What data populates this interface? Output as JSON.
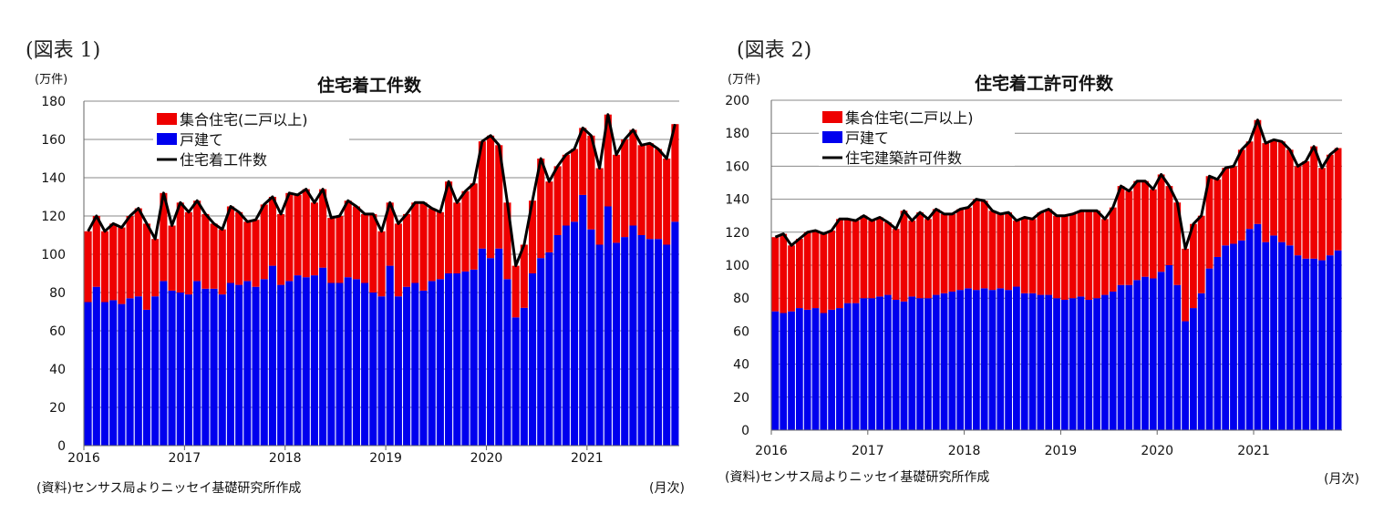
{
  "chart_data": [
    {
      "figure_label": "(図表 1)",
      "type": "bar",
      "stacked": true,
      "title": "住宅着工件数",
      "ylabel": "(万件)",
      "xlabel": "(月次)",
      "source": "(資料)センサス局よりニッセイ基礎研究所作成",
      "ylim": [
        0,
        180
      ],
      "yticks": [
        "0",
        "20",
        "40",
        "60",
        "80",
        "100",
        "120",
        "140",
        "160",
        "180"
      ],
      "xticks": [
        "2016",
        "2017",
        "2018",
        "2019",
        "2020",
        "2021"
      ],
      "period": "2016-01 to 2021-11 monthly",
      "grid": true,
      "legend_position": "top-left",
      "series": [
        {
          "name": "戸建て",
          "kind": "bar",
          "color": "#0000ee",
          "values": [
            75,
            83,
            75,
            76,
            74,
            77,
            78,
            71,
            78,
            86,
            81,
            80,
            79,
            86,
            82,
            82,
            79,
            85,
            84,
            86,
            83,
            87,
            94,
            84,
            86,
            89,
            88,
            89,
            93,
            85,
            85,
            88,
            87,
            85,
            80,
            78,
            94,
            78,
            83,
            85,
            81,
            86,
            87,
            90,
            90,
            91,
            92,
            103,
            98,
            103,
            87,
            67,
            72,
            90,
            98,
            101,
            110,
            115,
            117,
            131,
            113,
            105,
            125,
            106,
            109,
            115,
            110,
            108,
            108,
            105,
            117
          ]
        },
        {
          "name": "集合住宅(二戸以上)",
          "kind": "bar",
          "color": "#ee0000",
          "values": [
            37,
            37,
            37,
            40,
            40,
            43,
            46,
            45,
            30,
            46,
            34,
            47,
            43,
            42,
            39,
            34,
            34,
            40,
            38,
            31,
            35,
            39,
            36,
            37,
            46,
            42,
            46,
            38,
            41,
            34,
            35,
            40,
            38,
            36,
            41,
            34,
            33,
            38,
            38,
            42,
            46,
            38,
            35,
            48,
            37,
            42,
            45,
            56,
            64,
            54,
            40,
            27,
            33,
            38,
            52,
            37,
            36,
            37,
            38,
            35,
            49,
            40,
            48,
            46,
            51,
            50,
            47,
            50,
            47,
            45,
            51
          ]
        },
        {
          "name": "住宅着工件数",
          "kind": "line",
          "color": "#000000",
          "values": [
            112,
            120,
            112,
            116,
            114,
            120,
            124,
            116,
            108,
            132,
            115,
            127,
            122,
            128,
            121,
            116,
            113,
            125,
            122,
            117,
            118,
            126,
            130,
            121,
            132,
            131,
            134,
            127,
            134,
            119,
            120,
            128,
            125,
            121,
            121,
            112,
            127,
            116,
            121,
            127,
            127,
            124,
            122,
            138,
            127,
            133,
            137,
            159,
            162,
            157,
            127,
            94,
            105,
            128,
            150,
            138,
            146,
            152,
            155,
            166,
            162,
            145,
            173,
            152,
            160,
            165,
            157,
            158,
            155,
            150,
            168
          ]
        }
      ]
    },
    {
      "figure_label": "(図表 2)",
      "type": "bar",
      "stacked": true,
      "title": "住宅着工許可件数",
      "ylabel": "(万件)",
      "xlabel": "(月次)",
      "source": "(資料)センサス局よりニッセイ基礎研究所作成",
      "ylim": [
        0,
        200
      ],
      "yticks": [
        "0",
        "20",
        "40",
        "60",
        "80",
        "100",
        "120",
        "140",
        "160",
        "180",
        "200"
      ],
      "xticks": [
        "2016",
        "2017",
        "2018",
        "2019",
        "2020",
        "2021"
      ],
      "period": "2016-01 to 2021-11 monthly",
      "grid": true,
      "legend_position": "top-left",
      "series": [
        {
          "name": "戸建て",
          "kind": "bar",
          "color": "#0000ee",
          "values": [
            72,
            71,
            72,
            74,
            73,
            74,
            71,
            73,
            74,
            77,
            77,
            80,
            80,
            81,
            82,
            79,
            78,
            81,
            80,
            80,
            82,
            83,
            84,
            85,
            86,
            85,
            86,
            85,
            86,
            85,
            87,
            83,
            83,
            82,
            82,
            80,
            79,
            80,
            81,
            79,
            80,
            82,
            84,
            88,
            88,
            91,
            93,
            92,
            96,
            100,
            88,
            66,
            74,
            83,
            98,
            105,
            112,
            113,
            115,
            122,
            125,
            114,
            118,
            114,
            112,
            106,
            104,
            104,
            103,
            106,
            109
          ]
        },
        {
          "name": "集合住宅(二戸以上)",
          "kind": "bar",
          "color": "#ee0000",
          "values": [
            45,
            48,
            40,
            42,
            47,
            47,
            48,
            48,
            54,
            51,
            50,
            50,
            47,
            48,
            44,
            43,
            55,
            46,
            52,
            48,
            52,
            48,
            47,
            49,
            49,
            55,
            53,
            48,
            45,
            47,
            40,
            46,
            45,
            50,
            52,
            50,
            51,
            51,
            52,
            54,
            53,
            46,
            51,
            60,
            57,
            60,
            58,
            54,
            59,
            48,
            50,
            44,
            51,
            47,
            56,
            47,
            47,
            47,
            55,
            53,
            63,
            60,
            58,
            61,
            58,
            54,
            59,
            68,
            56,
            61,
            62
          ]
        },
        {
          "name": "住宅建築許可件数",
          "kind": "line",
          "color": "#000000",
          "values": [
            117,
            119,
            112,
            116,
            120,
            121,
            119,
            121,
            128,
            128,
            127,
            130,
            127,
            129,
            126,
            122,
            133,
            127,
            132,
            128,
            134,
            131,
            131,
            134,
            135,
            140,
            139,
            133,
            131,
            132,
            127,
            129,
            128,
            132,
            134,
            130,
            130,
            131,
            133,
            133,
            133,
            128,
            135,
            148,
            145,
            151,
            151,
            146,
            155,
            148,
            138,
            110,
            125,
            130,
            154,
            152,
            159,
            160,
            170,
            175,
            188,
            174,
            176,
            175,
            170,
            160,
            163,
            172,
            159,
            167,
            171
          ]
        }
      ]
    }
  ]
}
